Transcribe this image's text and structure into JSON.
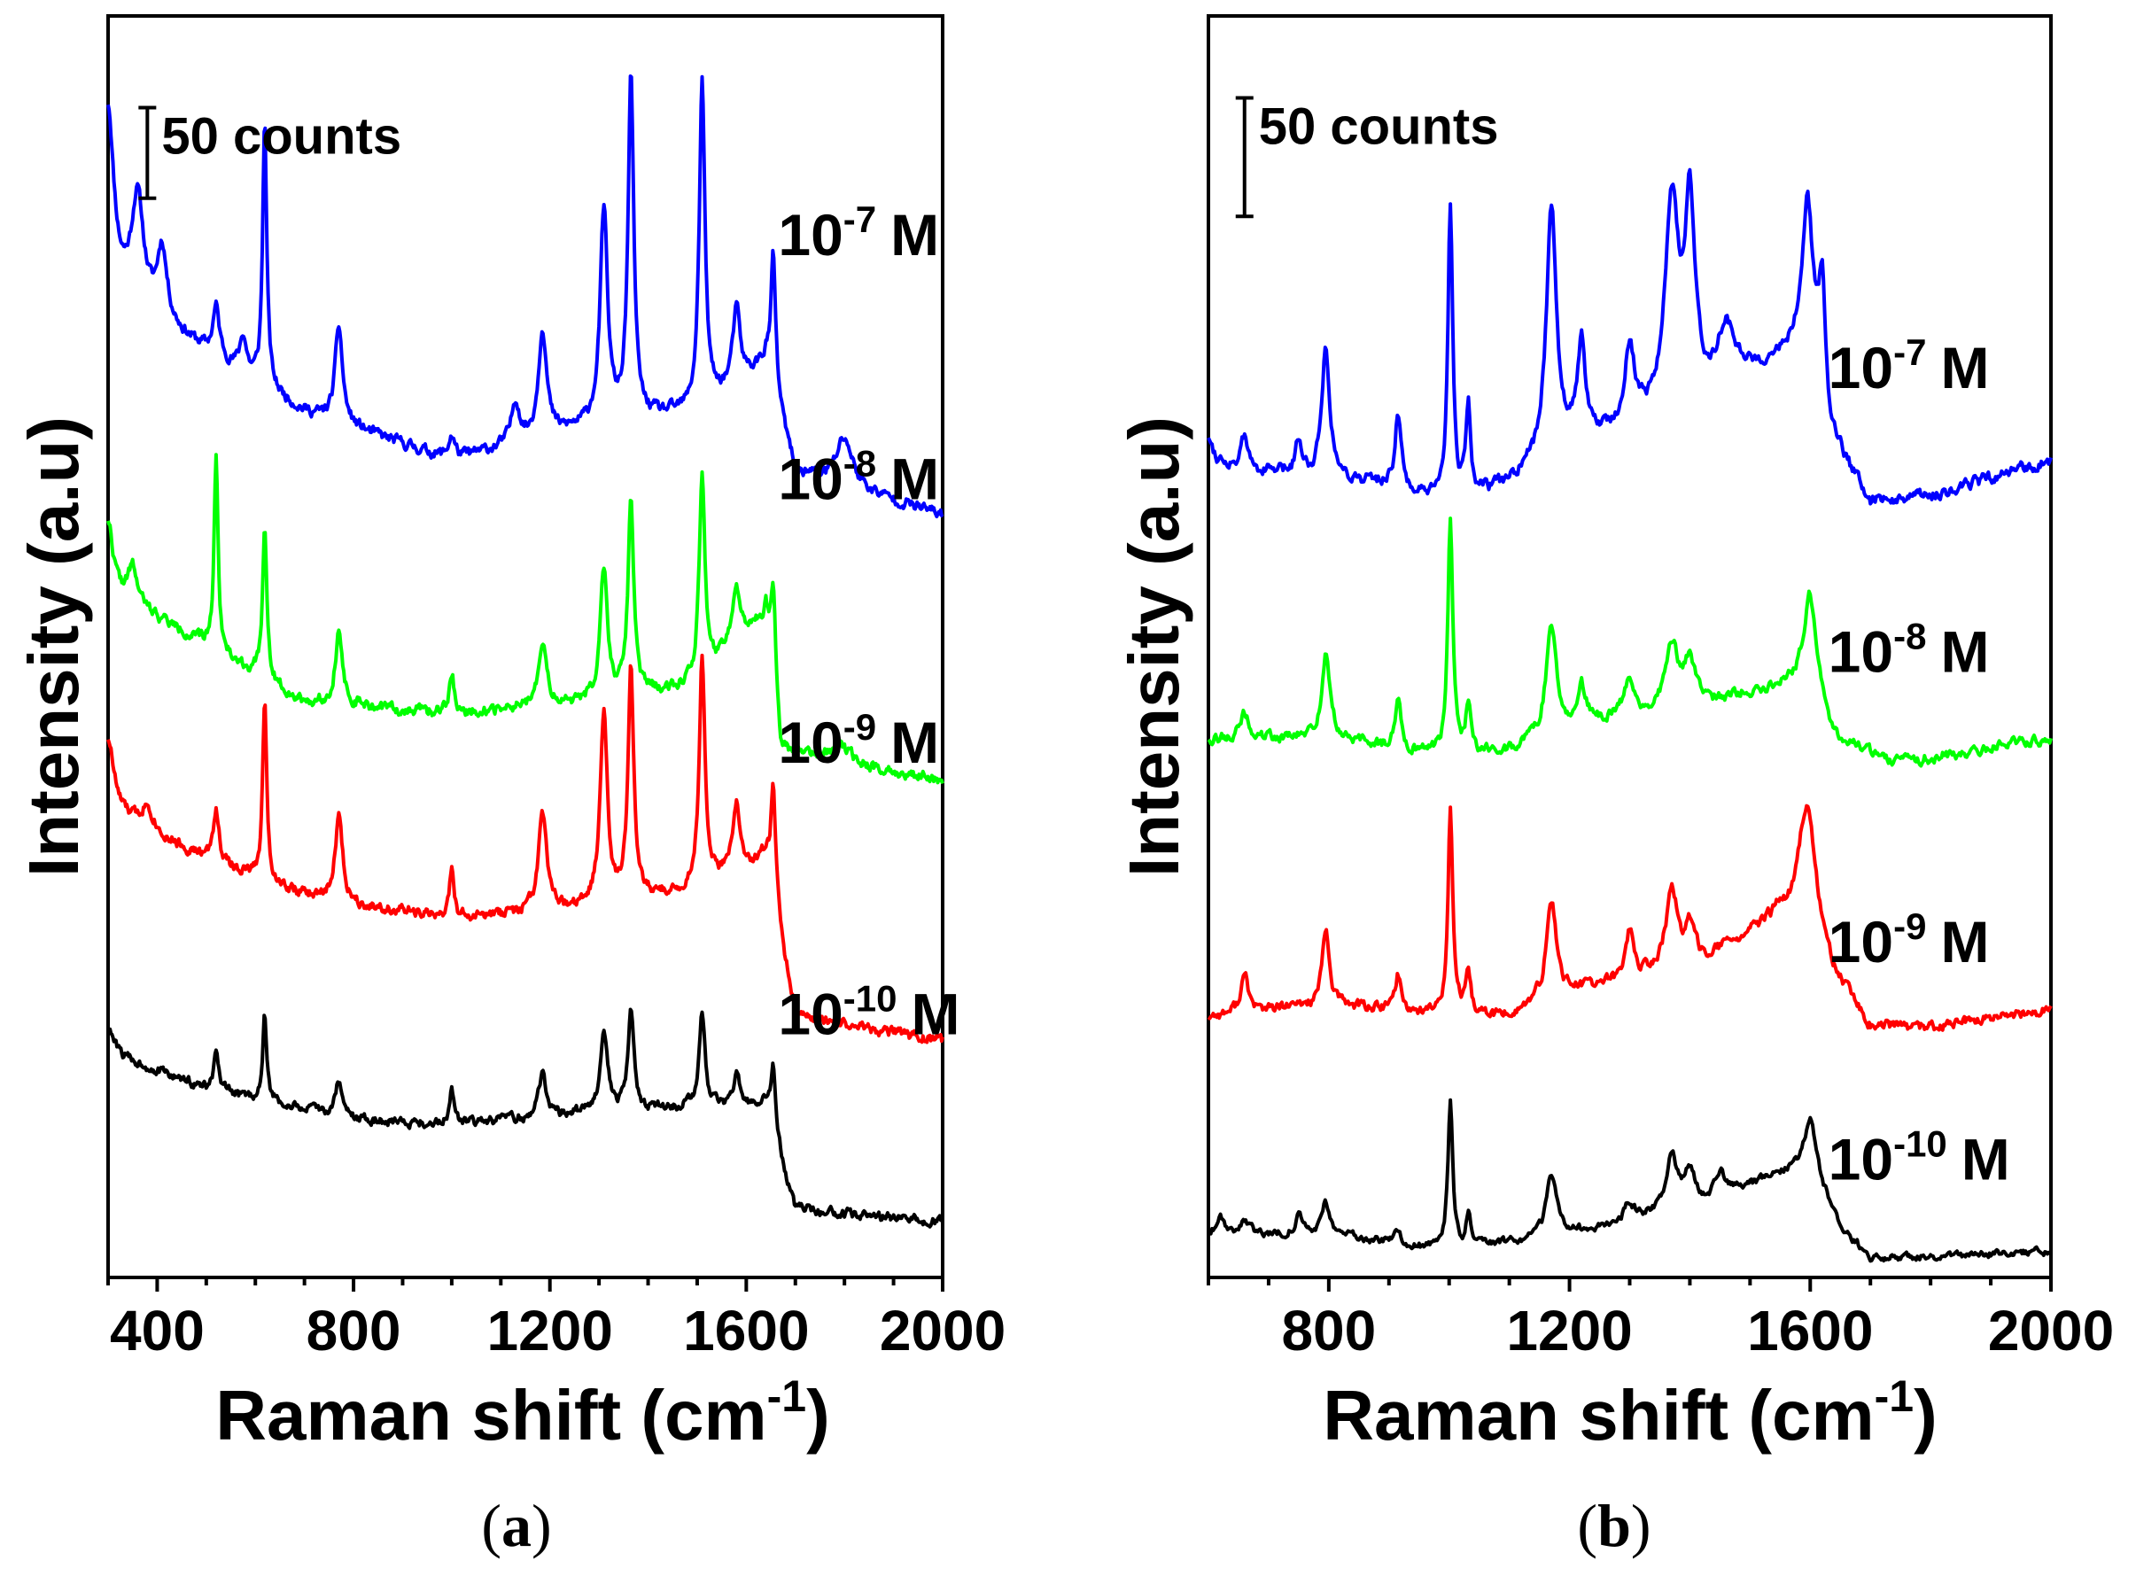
{
  "chart_data": [
    {
      "type": "line",
      "panel_label": "a",
      "xlabel": "Raman shift (cm",
      "xlabel_sup": "-1",
      "xlabel_close": ")",
      "ylabel": "Intensity (a.u)",
      "xlim": [
        300,
        2000
      ],
      "ylim": [
        0,
        1000
      ],
      "xticks": [
        400,
        800,
        1200,
        1600,
        2000
      ],
      "scale_bar": {
        "label": "50 counts",
        "value": 50,
        "x": 380,
        "y_range": [
          877,
          952
        ]
      },
      "series": [
        {
          "name": "1e-7 M",
          "color": "#0000ff",
          "label": {
            "base": "10",
            "exp": "-7",
            "unit": "M",
            "x": 1665,
            "y": 830
          },
          "baseline": [
            [
              300,
              800
            ],
            [
              700,
              700
            ],
            [
              1000,
              660
            ],
            [
              1200,
              680
            ],
            [
              1300,
              690
            ],
            [
              1500,
              700
            ],
            [
              1640,
              740
            ],
            [
              1700,
              650
            ],
            [
              2000,
              615
            ]
          ],
          "peaks": [
            [
              300,
              150,
              14
            ],
            [
              360,
              90,
              15
            ],
            [
              410,
              60,
              12
            ],
            [
              520,
              40,
              8
            ],
            [
              575,
              30,
              8
            ],
            [
              619,
              220,
              5
            ],
            [
              770,
              80,
              9
            ],
            [
              1000,
              20,
              8
            ],
            [
              1130,
              35,
              10
            ],
            [
              1185,
              90,
              10
            ],
            [
              1310,
              175,
              9
            ],
            [
              1365,
              280,
              7
            ],
            [
              1510,
              270,
              7
            ],
            [
              1580,
              60,
              9
            ],
            [
              1655,
              110,
              6
            ],
            [
              1800,
              40,
              20
            ]
          ],
          "noise": 3.5,
          "seed": 11
        },
        {
          "name": "1e-8 M",
          "color": "#00ff00",
          "label": {
            "base": "10",
            "exp": "-8",
            "unit": "M",
            "x": 1665,
            "y": 628
          },
          "baseline": [
            [
              300,
              550
            ],
            [
              400,
              530
            ],
            [
              700,
              460
            ],
            [
              1000,
              450
            ],
            [
              1300,
              460
            ],
            [
              1500,
              475
            ],
            [
              1640,
              530
            ],
            [
              1670,
              420
            ],
            [
              2000,
              395
            ]
          ],
          "peaks": [
            [
              300,
              60,
              12
            ],
            [
              350,
              30,
              12
            ],
            [
              520,
              160,
              5
            ],
            [
              619,
              130,
              5
            ],
            [
              770,
              60,
              9
            ],
            [
              1000,
              35,
              6
            ],
            [
              1185,
              50,
              10
            ],
            [
              1310,
              110,
              9
            ],
            [
              1365,
              160,
              7
            ],
            [
              1510,
              170,
              7
            ],
            [
              1580,
              45,
              10
            ],
            [
              1655,
              85,
              6
            ],
            [
              1790,
              15,
              20
            ]
          ],
          "noise": 3.5,
          "seed": 22
        },
        {
          "name": "1e-9 M",
          "color": "#ff0000",
          "label": {
            "base": "10",
            "exp": "-9",
            "unit": "M",
            "x": 1665,
            "y": 410
          },
          "baseline": [
            [
              300,
              370
            ],
            [
              500,
              330
            ],
            [
              700,
              300
            ],
            [
              1000,
              280
            ],
            [
              1300,
              290
            ],
            [
              1500,
              305
            ],
            [
              1640,
              330
            ],
            [
              1700,
              200
            ],
            [
              2000,
              180
            ]
          ],
          "peaks": [
            [
              300,
              60,
              14
            ],
            [
              380,
              20,
              15
            ],
            [
              520,
              45,
              7
            ],
            [
              619,
              150,
              5
            ],
            [
              770,
              70,
              9
            ],
            [
              1000,
              40,
              6
            ],
            [
              1185,
              80,
              10
            ],
            [
              1310,
              160,
              9
            ],
            [
              1365,
              190,
              7
            ],
            [
              1510,
              190,
              7
            ],
            [
              1580,
              55,
              9
            ],
            [
              1655,
              95,
              6
            ]
          ],
          "noise": 3.5,
          "seed": 33
        },
        {
          "name": "1e-10 M",
          "color": "#000000",
          "label": {
            "base": "10",
            "exp": "-10",
            "unit": "M",
            "x": 1665,
            "y": 185
          },
          "baseline": [
            [
              300,
              170
            ],
            [
              500,
              140
            ],
            [
              800,
              115
            ],
            [
              1000,
              110
            ],
            [
              1300,
              120
            ],
            [
              1500,
              125
            ],
            [
              1640,
              125
            ],
            [
              1700,
              40
            ],
            [
              2000,
              30
            ]
          ],
          "peaks": [
            [
              300,
              20,
              14
            ],
            [
              520,
              30,
              6
            ],
            [
              619,
              70,
              5
            ],
            [
              770,
              30,
              8
            ],
            [
              1000,
              30,
              6
            ],
            [
              1185,
              35,
              10
            ],
            [
              1310,
              70,
              9
            ],
            [
              1365,
              85,
              7
            ],
            [
              1510,
              80,
              7
            ],
            [
              1580,
              25,
              9
            ],
            [
              1655,
              55,
              6
            ]
          ],
          "noise": 3,
          "seed": 44
        }
      ]
    },
    {
      "type": "line",
      "panel_label": "b",
      "xlabel": "Raman shift (cm",
      "xlabel_sup": "-1",
      "xlabel_close": ")",
      "ylabel": "Intensity (a.u)",
      "xlim": [
        600,
        2000
      ],
      "ylim": [
        0,
        1000
      ],
      "xticks": [
        800,
        1200,
        1600,
        2000
      ],
      "scale_bar": {
        "label": "50 counts",
        "value": 50,
        "x": 660,
        "y_range": [
          862,
          960
        ]
      },
      "series": [
        {
          "name": "1e-7 M",
          "color": "#0000ff",
          "label": {
            "base": "10",
            "exp": "-7",
            "unit": "M",
            "x": 1630,
            "y": 720
          },
          "baseline": [
            [
              600,
              660
            ],
            [
              700,
              650
            ],
            [
              900,
              640
            ],
            [
              1000,
              620
            ],
            [
              1100,
              640
            ],
            [
              1200,
              670
            ],
            [
              1400,
              700
            ],
            [
              1600,
              760
            ],
            [
              1630,
              680
            ],
            [
              1700,
              625
            ],
            [
              1800,
              630
            ],
            [
              2000,
              660
            ]
          ],
          "peaks": [
            [
              600,
              20,
              8
            ],
            [
              660,
              25,
              6
            ],
            [
              750,
              30,
              6
            ],
            [
              795,
              110,
              8
            ],
            [
              915,
              60,
              6
            ],
            [
              1002,
              250,
              5
            ],
            [
              1032,
              70,
              5
            ],
            [
              1170,
              210,
              10
            ],
            [
              1220,
              80,
              8
            ],
            [
              1300,
              65,
              10
            ],
            [
              1370,
              170,
              14
            ],
            [
              1400,
              160,
              10
            ],
            [
              1460,
              50,
              20
            ],
            [
              1595,
              110,
              10
            ],
            [
              1620,
              100,
              7
            ]
          ],
          "noise": 4,
          "seed": 55
        },
        {
          "name": "1e-8 M",
          "color": "#00ff00",
          "label": {
            "base": "10",
            "exp": "-8",
            "unit": "M",
            "x": 1630,
            "y": 485
          },
          "baseline": [
            [
              600,
              430
            ],
            [
              800,
              430
            ],
            [
              1000,
              415
            ],
            [
              1100,
              420
            ],
            [
              1200,
              440
            ],
            [
              1400,
              455
            ],
            [
              1600,
              480
            ],
            [
              1640,
              430
            ],
            [
              1750,
              410
            ],
            [
              2000,
              430
            ]
          ],
          "peaks": [
            [
              660,
              20,
              8
            ],
            [
              795,
              70,
              8
            ],
            [
              915,
              40,
              6
            ],
            [
              1002,
              200,
              5
            ],
            [
              1032,
              40,
              5
            ],
            [
              1170,
              90,
              10
            ],
            [
              1220,
              30,
              8
            ],
            [
              1300,
              30,
              10
            ],
            [
              1370,
              55,
              12
            ],
            [
              1400,
              40,
              10
            ],
            [
              1600,
              70,
              12
            ]
          ],
          "noise": 3.5,
          "seed": 66
        },
        {
          "name": "1e-9 M",
          "color": "#ff0000",
          "label": {
            "base": "10",
            "exp": "-9",
            "unit": "M",
            "x": 1630,
            "y": 245
          },
          "baseline": [
            [
              600,
              200
            ],
            [
              800,
              210
            ],
            [
              1000,
              200
            ],
            [
              1100,
              200
            ],
            [
              1200,
              220
            ],
            [
              1400,
              240
            ],
            [
              1550,
              280
            ],
            [
              1620,
              240
            ],
            [
              1700,
              190
            ],
            [
              1800,
              190
            ],
            [
              2000,
              205
            ]
          ],
          "peaks": [
            [
              660,
              30,
              8
            ],
            [
              795,
              60,
              7
            ],
            [
              915,
              30,
              6
            ],
            [
              1002,
              170,
              5
            ],
            [
              1032,
              30,
              5
            ],
            [
              1170,
              80,
              10
            ],
            [
              1300,
              40,
              8
            ],
            [
              1370,
              65,
              12
            ],
            [
              1400,
              30,
              10
            ],
            [
              1595,
              120,
              18
            ]
          ],
          "noise": 3.5,
          "seed": 77
        },
        {
          "name": "1e-10 M",
          "color": "#000000",
          "label": {
            "base": "10",
            "exp": "-10",
            "unit": "M",
            "x": 1630,
            "y": 65
          },
          "baseline": [
            [
              600,
              20
            ],
            [
              800,
              20
            ],
            [
              1000,
              5
            ],
            [
              1200,
              20
            ],
            [
              1400,
              40
            ],
            [
              1550,
              70
            ],
            [
              1600,
              75
            ],
            [
              1650,
              25
            ],
            [
              1700,
              0
            ],
            [
              2000,
              5
            ]
          ],
          "peaks": [
            [
              620,
              15,
              8
            ],
            [
              660,
              12,
              8
            ],
            [
              750,
              15,
              6
            ],
            [
              795,
              25,
              8
            ],
            [
              915,
              10,
              6
            ],
            [
              1002,
              125,
              5
            ],
            [
              1032,
              25,
              5
            ],
            [
              1170,
              50,
              10
            ],
            [
              1300,
              15,
              10
            ],
            [
              1370,
              45,
              12
            ],
            [
              1400,
              30,
              10
            ],
            [
              1450,
              20,
              10
            ],
            [
              1600,
              40,
              12
            ]
          ],
          "noise": 2.5,
          "seed": 88
        }
      ]
    }
  ]
}
